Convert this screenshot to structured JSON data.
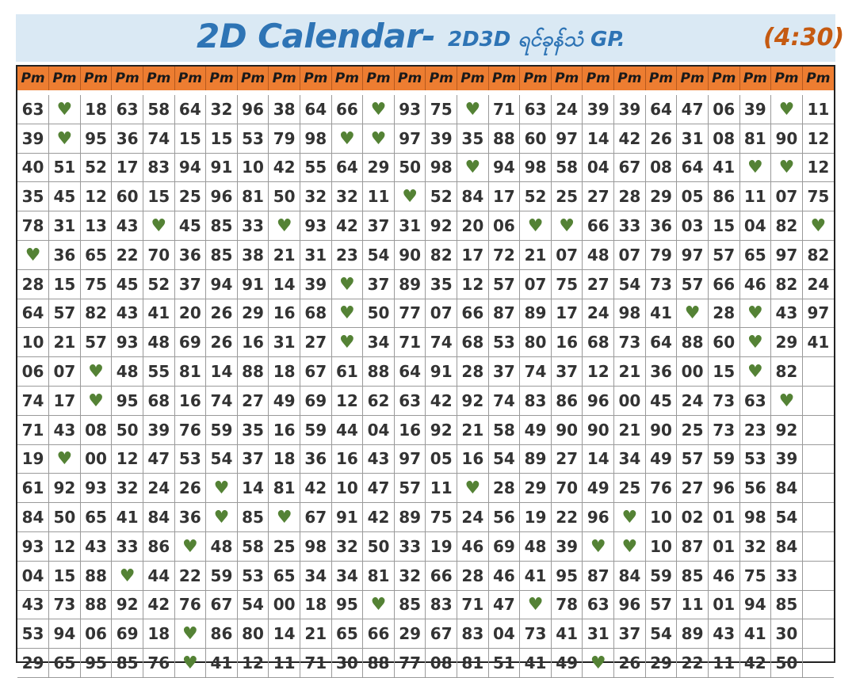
{
  "header": {
    "title": "2D Calendar-",
    "subtitle": "2D3D ရင်ခုန်သံ GP.",
    "time": "(4:30)"
  },
  "colors": {
    "header_bg": "#dae9f4",
    "title": "#2e74b5",
    "time": "#c55a11",
    "column_header_bg": "#ed7d31",
    "heart": "#548235"
  },
  "icons": {
    "heart": "heart-icon"
  },
  "column_label": "Pm",
  "column_count": 26,
  "rows": [
    [
      "63",
      "H",
      "18",
      "63",
      "58",
      "64",
      "32",
      "96",
      "38",
      "64",
      "66",
      "H",
      "93",
      "75",
      "H",
      "71",
      "63",
      "24",
      "39",
      "39",
      "64",
      "47",
      "06",
      "39",
      "H",
      "11"
    ],
    [
      "39",
      "H",
      "95",
      "36",
      "74",
      "15",
      "15",
      "53",
      "79",
      "98",
      "H",
      "H",
      "97",
      "39",
      "35",
      "88",
      "60",
      "97",
      "14",
      "42",
      "26",
      "31",
      "08",
      "81",
      "90",
      "12"
    ],
    [
      "40",
      "51",
      "52",
      "17",
      "83",
      "94",
      "91",
      "10",
      "42",
      "55",
      "64",
      "29",
      "50",
      "98",
      "H",
      "94",
      "98",
      "58",
      "04",
      "67",
      "08",
      "64",
      "41",
      "H",
      "H",
      "12"
    ],
    [
      "35",
      "45",
      "12",
      "60",
      "15",
      "25",
      "96",
      "81",
      "50",
      "32",
      "32",
      "11",
      "H",
      "52",
      "84",
      "17",
      "52",
      "25",
      "27",
      "28",
      "29",
      "05",
      "86",
      "11",
      "07",
      "75"
    ],
    [
      "78",
      "31",
      "13",
      "43",
      "H",
      "45",
      "85",
      "33",
      "H",
      "93",
      "42",
      "37",
      "31",
      "92",
      "20",
      "06",
      "H",
      "H",
      "66",
      "33",
      "36",
      "03",
      "15",
      "04",
      "82",
      "H"
    ],
    [
      "H",
      "36",
      "65",
      "22",
      "70",
      "36",
      "85",
      "38",
      "21",
      "31",
      "23",
      "54",
      "90",
      "82",
      "17",
      "72",
      "21",
      "07",
      "48",
      "07",
      "79",
      "97",
      "57",
      "65",
      "97",
      "82"
    ],
    [
      "28",
      "15",
      "75",
      "45",
      "52",
      "37",
      "94",
      "91",
      "14",
      "39",
      "H",
      "37",
      "89",
      "35",
      "12",
      "57",
      "07",
      "75",
      "27",
      "54",
      "73",
      "57",
      "66",
      "46",
      "82",
      "24"
    ],
    [
      "64",
      "57",
      "82",
      "43",
      "41",
      "20",
      "26",
      "29",
      "16",
      "68",
      "H",
      "50",
      "77",
      "07",
      "66",
      "87",
      "89",
      "17",
      "24",
      "98",
      "41",
      "H",
      "28",
      "H",
      "43",
      "97"
    ],
    [
      "10",
      "21",
      "57",
      "93",
      "48",
      "69",
      "26",
      "16",
      "31",
      "27",
      "H",
      "34",
      "71",
      "74",
      "68",
      "53",
      "80",
      "16",
      "68",
      "73",
      "64",
      "88",
      "60",
      "H",
      "29",
      "41"
    ],
    [
      "06",
      "07",
      "H",
      "48",
      "55",
      "81",
      "14",
      "88",
      "18",
      "67",
      "61",
      "88",
      "64",
      "91",
      "28",
      "37",
      "74",
      "37",
      "12",
      "21",
      "36",
      "00",
      "15",
      "H",
      "82",
      ""
    ],
    [
      "74",
      "17",
      "H",
      "95",
      "68",
      "16",
      "74",
      "27",
      "49",
      "69",
      "12",
      "62",
      "63",
      "42",
      "92",
      "74",
      "83",
      "86",
      "96",
      "00",
      "45",
      "24",
      "73",
      "63",
      "H",
      ""
    ],
    [
      "71",
      "43",
      "08",
      "50",
      "39",
      "76",
      "59",
      "35",
      "16",
      "59",
      "44",
      "04",
      "16",
      "92",
      "21",
      "58",
      "49",
      "90",
      "90",
      "21",
      "90",
      "25",
      "73",
      "23",
      "92",
      ""
    ],
    [
      "19",
      "H",
      "00",
      "12",
      "47",
      "53",
      "54",
      "37",
      "18",
      "36",
      "16",
      "43",
      "97",
      "05",
      "16",
      "54",
      "89",
      "27",
      "14",
      "34",
      "49",
      "57",
      "59",
      "53",
      "39",
      ""
    ],
    [
      "61",
      "92",
      "93",
      "32",
      "24",
      "26",
      "H",
      "14",
      "81",
      "42",
      "10",
      "47",
      "57",
      "11",
      "H",
      "28",
      "29",
      "70",
      "49",
      "25",
      "76",
      "27",
      "96",
      "56",
      "84",
      ""
    ],
    [
      "84",
      "50",
      "65",
      "41",
      "84",
      "36",
      "H",
      "85",
      "H",
      "67",
      "91",
      "42",
      "89",
      "75",
      "24",
      "56",
      "19",
      "22",
      "96",
      "H",
      "10",
      "02",
      "01",
      "98",
      "54",
      ""
    ],
    [
      "93",
      "12",
      "43",
      "33",
      "86",
      "H",
      "48",
      "58",
      "25",
      "98",
      "32",
      "50",
      "33",
      "19",
      "46",
      "69",
      "48",
      "39",
      "H",
      "H",
      "10",
      "87",
      "01",
      "32",
      "84",
      ""
    ],
    [
      "04",
      "15",
      "88",
      "H",
      "44",
      "22",
      "59",
      "53",
      "65",
      "34",
      "34",
      "81",
      "32",
      "66",
      "28",
      "46",
      "41",
      "95",
      "87",
      "84",
      "59",
      "85",
      "46",
      "75",
      "33",
      ""
    ],
    [
      "43",
      "73",
      "88",
      "92",
      "42",
      "76",
      "67",
      "54",
      "00",
      "18",
      "95",
      "H",
      "85",
      "83",
      "71",
      "47",
      "H",
      "78",
      "63",
      "96",
      "57",
      "11",
      "01",
      "94",
      "85",
      ""
    ],
    [
      "53",
      "94",
      "06",
      "69",
      "18",
      "H",
      "86",
      "80",
      "14",
      "21",
      "65",
      "66",
      "29",
      "67",
      "83",
      "04",
      "73",
      "41",
      "31",
      "37",
      "54",
      "89",
      "43",
      "41",
      "30",
      ""
    ],
    [
      "29",
      "65",
      "95",
      "85",
      "76",
      "H",
      "41",
      "12",
      "11",
      "71",
      "30",
      "88",
      "77",
      "08",
      "81",
      "51",
      "41",
      "49",
      "H",
      "26",
      "29",
      "22",
      "11",
      "42",
      "50",
      ""
    ]
  ]
}
